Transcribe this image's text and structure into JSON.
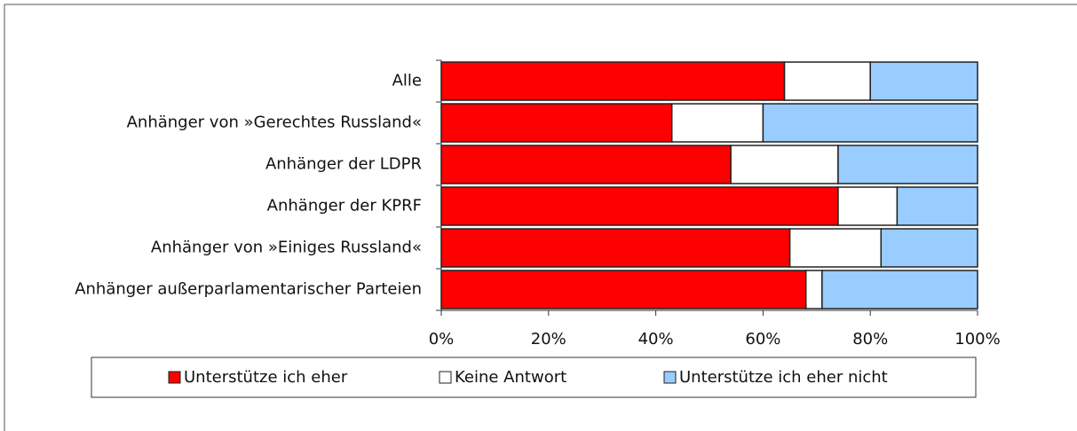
{
  "chart_data": {
    "type": "stacked-bar-horizontal",
    "categories": [
      "Alle",
      "Anhänger von »Gerechtes Russland«",
      "Anhänger der LDPR",
      "Anhänger der KPRF",
      "Anhänger von »Einiges Russland«",
      "Anhänger außerparlamentarischer Parteien"
    ],
    "series": [
      {
        "name": "Unterstütze ich eher",
        "color": "#ff0000",
        "values": [
          64,
          43,
          54,
          74,
          65,
          68
        ]
      },
      {
        "name": "Keine Antwort",
        "color": "#ffffff",
        "values": [
          16,
          17,
          20,
          11,
          17,
          3
        ]
      },
      {
        "name": "Unterstütze ich eher nicht",
        "color": "#99ccff",
        "values": [
          20,
          40,
          26,
          15,
          18,
          29
        ]
      }
    ],
    "xlim": [
      0,
      100
    ],
    "xticks": [
      {
        "value": 0,
        "label": "0%"
      },
      {
        "value": 20,
        "label": "20%"
      },
      {
        "value": 40,
        "label": "40%"
      },
      {
        "value": 60,
        "label": "60%"
      },
      {
        "value": 80,
        "label": "80%"
      },
      {
        "value": 100,
        "label": "100%"
      }
    ],
    "legend": "bottom"
  }
}
